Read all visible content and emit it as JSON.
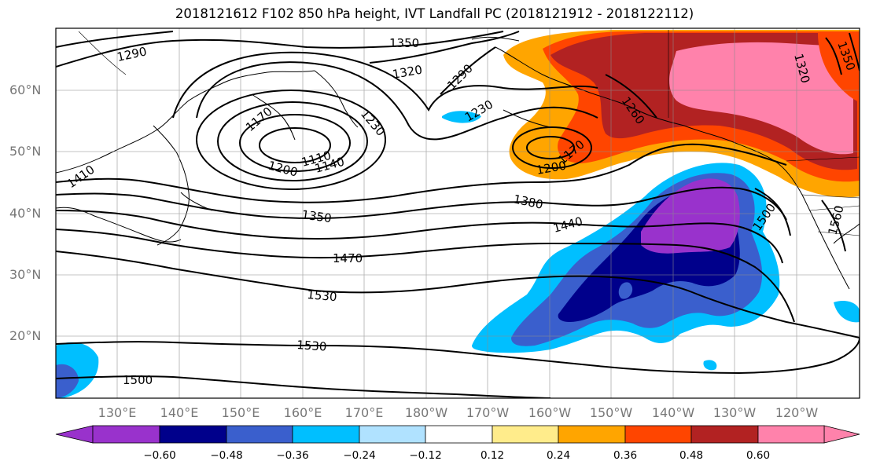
{
  "title": "2018121612 F102 850 hPa height, IVT Landfall PC (2018121912 - 2018122112)",
  "map": {
    "lat_labels": [
      "60°N",
      "50°N",
      "40°N",
      "30°N",
      "20°N"
    ],
    "lon_labels": [
      "130°E",
      "140°E",
      "150°E",
      "160°E",
      "170°E",
      "180°W",
      "170°W",
      "160°W",
      "150°W",
      "140°W",
      "130°W",
      "120°W"
    ],
    "contour_labels": [
      "1290",
      "1350",
      "1320",
      "1290",
      "1230",
      "1170",
      "1110",
      "1140",
      "1200",
      "1230",
      "1200",
      "1170",
      "1260",
      "1320",
      "1350",
      "1410",
      "1350",
      "1380",
      "1440",
      "1470",
      "1500",
      "1560",
      "1530",
      "1530",
      "1500"
    ]
  },
  "colorbar": {
    "ticks": [
      "−0.60",
      "−0.48",
      "−0.36",
      "−0.24",
      "−0.12",
      "0.12",
      "0.24",
      "0.36",
      "0.48",
      "0.60"
    ],
    "colors": [
      "#9932cc",
      "#00008b",
      "#3a5fcd",
      "#00bfff",
      "#b0e2ff",
      "#ffffff",
      "#ffec8b",
      "#ffa500",
      "#ff4500",
      "#b22222",
      "#ff82ab"
    ]
  }
}
